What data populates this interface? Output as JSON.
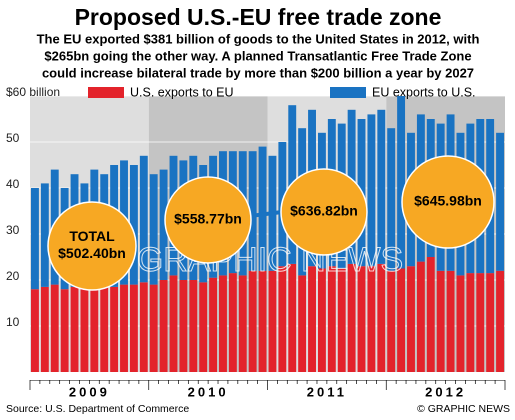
{
  "chart_data": {
    "type": "stacked_bar",
    "title": "Proposed U.S.-EU free trade zone",
    "subtitle": [
      "The EU exported $381 billion of goods to the United States in 2012, with",
      "$265bn going the other way. A planned Transatlantic Free Trade Zone",
      "could increase bilateral trade by more than $200 billion a year by 2027"
    ],
    "years": [
      "2009",
      "2010",
      "2011",
      "2012"
    ],
    "categories": [
      null,
      null,
      null,
      null,
      null,
      null,
      null,
      null,
      null,
      null,
      null,
      null,
      null,
      null,
      null,
      null,
      null,
      null,
      null,
      null,
      null,
      null,
      null,
      null,
      null,
      null,
      null,
      null,
      null,
      null,
      null,
      null,
      null,
      null,
      null,
      null,
      null,
      null,
      null,
      null,
      null,
      null,
      null,
      null,
      null,
      null,
      null,
      null
    ],
    "series": [
      {
        "name": "U.S. exports to EU",
        "color": "#e3232b",
        "values": [
          18,
          18.5,
          19,
          18,
          18.5,
          18,
          18.5,
          19,
          18.5,
          19,
          19,
          19.5,
          19,
          20,
          21,
          20,
          20,
          19.5,
          20.5,
          21,
          21.5,
          21,
          22,
          22,
          22,
          23,
          23.5,
          21,
          23,
          22.5,
          23,
          22.5,
          23.5,
          23,
          23,
          23.5,
          22,
          22.5,
          23,
          24,
          25,
          22,
          22,
          21,
          21.5,
          21.5,
          21.5,
          22
        ]
      },
      {
        "name": "EU exports to U.S.",
        "color": "#1a73c2",
        "values": [
          22,
          22.5,
          25,
          22,
          24.5,
          23,
          25.5,
          24,
          26.5,
          27,
          26,
          27.5,
          24,
          24,
          26,
          26,
          27,
          25.5,
          26.5,
          27,
          26.5,
          27,
          26,
          27,
          25,
          27,
          34.5,
          32,
          34,
          29.5,
          32,
          31.5,
          33.5,
          32,
          33,
          33.5,
          31,
          37.5,
          29,
          32,
          30,
          32,
          34,
          31,
          32.5,
          33.5,
          33.5,
          30
        ]
      }
    ],
    "ylim": [
      0,
      60
    ],
    "yticks": [
      10,
      20,
      30,
      40,
      50,
      {
        "value": 60,
        "label": "$60 billion"
      }
    ],
    "grid": true,
    "annotations": [
      [
        "TOTAL",
        "$502.40bn"
      ],
      [
        "$558.77bn"
      ],
      [
        "$636.82bn"
      ],
      [
        "$645.98bn"
      ]
    ],
    "watermark": "GRAPHIC NEWS",
    "source": "Source: U.S. Department of Commerce",
    "credit": "© GRAPHIC NEWS"
  }
}
